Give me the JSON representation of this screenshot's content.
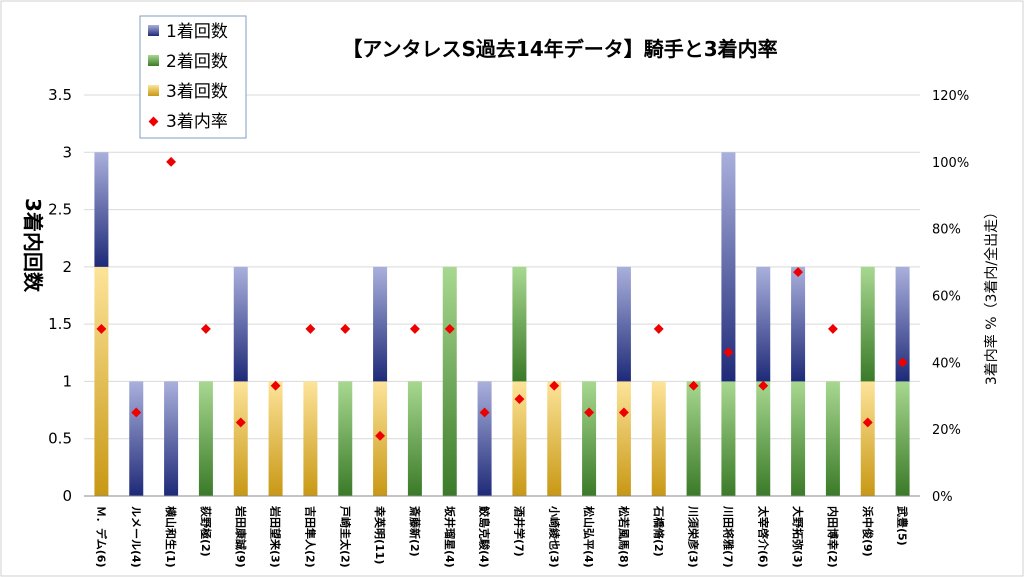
{
  "chart_data": {
    "type": "bar",
    "title": "【アンタレスS過去14年データ】騎手と3着内率",
    "ylabel": "3着内回数",
    "y2label": "3着内率 %（3着内/全出走）",
    "ylim": [
      0,
      3.5
    ],
    "yticks": [
      "0",
      "0.5",
      "1",
      "1.5",
      "2",
      "2.5",
      "3",
      "3.5"
    ],
    "y2lim": [
      0,
      120
    ],
    "y2ticks": [
      "0%",
      "20%",
      "40%",
      "60%",
      "80%",
      "100%",
      "120%"
    ],
    "categories": [
      "Ｍ．デム(6)",
      "ルメール(4)",
      "横山和生(1)",
      "荻野極(2)",
      "岩田康誠(9)",
      "岩田望来(3)",
      "吉田隼人(2)",
      "戸崎圭太(2)",
      "幸英明(11)",
      "斎藤新(2)",
      "坂井瑠星(4)",
      "鮫島克駿(4)",
      "酒井学(7)",
      "小崎綾也(3)",
      "松山弘平(4)",
      "松若風馬(8)",
      "石橋脩(2)",
      "川須栄彦(3)",
      "川田将雅(7)",
      "太宰啓介(6)",
      "大野拓弥(3)",
      "内田博幸(2)",
      "浜中俊(9)",
      "武豊(5)"
    ],
    "series": [
      {
        "name": "3着回数",
        "values": [
          2,
          0,
          0,
          0,
          1,
          1,
          1,
          0,
          1,
          0,
          0,
          0,
          1,
          1,
          0,
          1,
          1,
          0,
          0,
          0,
          0,
          0,
          1,
          0
        ]
      },
      {
        "name": "2着回数",
        "values": [
          0,
          0,
          0,
          1,
          0,
          0,
          0,
          1,
          0,
          1,
          2,
          0,
          1,
          0,
          1,
          0,
          0,
          1,
          1,
          1,
          1,
          1,
          1,
          1
        ]
      },
      {
        "name": "1着回数",
        "values": [
          1,
          1,
          1,
          0,
          1,
          0,
          0,
          0,
          1,
          0,
          0,
          1,
          0,
          0,
          0,
          1,
          0,
          0,
          2,
          1,
          1,
          0,
          0,
          1
        ]
      },
      {
        "name": "3着内率",
        "axis": "right",
        "values": [
          50,
          25,
          100,
          50,
          22,
          33,
          50,
          50,
          18,
          50,
          50,
          25,
          29,
          33,
          25,
          25,
          50,
          33,
          43,
          33,
          67,
          50,
          22,
          40
        ]
      }
    ],
    "legend": [
      "1着回数",
      "2着回数",
      "3着回数",
      "3着内率"
    ],
    "legend_position": "top-left",
    "colors": {
      "first": "#3d4aa0",
      "second": "#3a8a28",
      "third": "#c9a020",
      "rate": "#ee0000"
    }
  }
}
